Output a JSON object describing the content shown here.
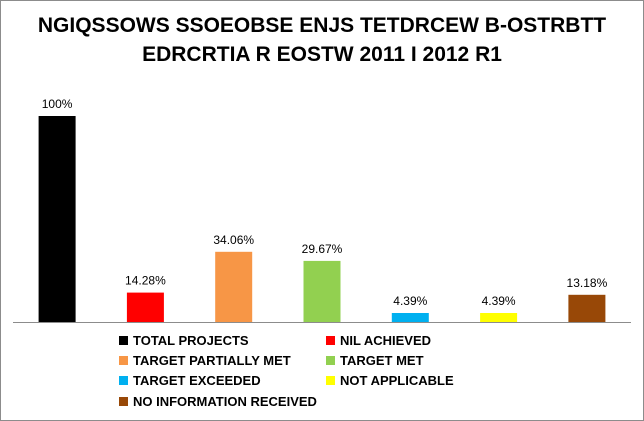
{
  "chart_data": {
    "type": "bar",
    "title": "NGIQSSOWS SSOEOBSE ENJS TETDRCEW B-OSTRBTT EDRCRTIA R EOSTW 2011 I 2012 R1",
    "categories": [
      "TOTAL PROJECTS",
      "NIL ACHIEVED",
      "TARGET PARTIALLY MET",
      "TARGET MET",
      "TARGET EXCEEDED",
      "NOT APPLICABLE",
      "NO INFORMATION RECEIVED"
    ],
    "values": [
      100,
      14.28,
      34.06,
      29.67,
      4.39,
      4.39,
      13.18
    ],
    "data_labels": [
      "100%",
      "14.28%",
      "34.06%",
      "29.67%",
      "4.39%",
      "4.39%",
      "13.18%"
    ],
    "colors": [
      "#000000",
      "#ff0000",
      "#f79646",
      "#92d050",
      "#00b0f0",
      "#ffff00",
      "#984807"
    ],
    "ylim": [
      0,
      100
    ],
    "grid": false,
    "legend_position": "bottom"
  }
}
